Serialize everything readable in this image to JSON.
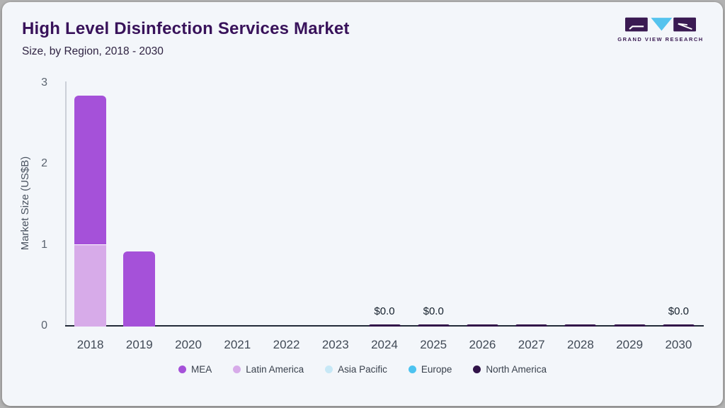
{
  "header": {
    "title": "High Level Disinfection Services Market",
    "subtitle": "Size, by Region, 2018 - 2030"
  },
  "logo": {
    "text": "GRAND VIEW RESEARCH",
    "square_color": "#3a1a52",
    "triangle_color": "#55c3ee"
  },
  "colors": {
    "card_background": "#f3f6fa",
    "title_text": "#38125a",
    "x_axis_line": "#232b39",
    "y_axis_line": "#cbd0d8"
  },
  "chart_data": {
    "type": "bar",
    "stacked": true,
    "title": "High Level Disinfection Services Market",
    "subtitle": "Size, by Region, 2018 - 2030",
    "xlabel": "",
    "ylabel": "Market Size (US$B)",
    "ylim": [
      0,
      3
    ],
    "yticks": [
      0,
      1,
      2,
      3
    ],
    "grid": false,
    "legend_position": "bottom",
    "categories": [
      "2018",
      "2019",
      "2020",
      "2021",
      "2022",
      "2023",
      "2024",
      "2025",
      "2026",
      "2027",
      "2028",
      "2029",
      "2030"
    ],
    "series": [
      {
        "name": "MEA",
        "color": "#a551d9",
        "values": [
          1.84,
          0.93,
          0,
          0,
          0,
          0,
          0,
          0,
          0,
          0,
          0,
          0,
          0
        ]
      },
      {
        "name": "Latin America",
        "color": "#d7abe9",
        "values": [
          1.01,
          0,
          0,
          0,
          0,
          0,
          0,
          0,
          0,
          0,
          0,
          0,
          0
        ]
      },
      {
        "name": "Asia Pacific",
        "color": "#c7e8f6",
        "values": [
          0,
          0,
          0,
          0,
          0,
          0,
          0,
          0,
          0,
          0,
          0,
          0,
          0
        ]
      },
      {
        "name": "Europe",
        "color": "#4cc3f0",
        "values": [
          0,
          0,
          0,
          0,
          0,
          0,
          0,
          0,
          0,
          0,
          0,
          0,
          0
        ]
      },
      {
        "name": "North America",
        "color": "#311349",
        "values": [
          0,
          0,
          0,
          0,
          0,
          0,
          0.03,
          0.03,
          0.03,
          0.03,
          0.03,
          0.03,
          0.03
        ]
      }
    ],
    "stack_order_bottom_to_top": [
      "North America",
      "Europe",
      "Asia Pacific",
      "Latin America",
      "MEA"
    ],
    "bar_labels": [
      {
        "category": "2024",
        "text": "$0.0"
      },
      {
        "category": "2025",
        "text": "$0.0"
      },
      {
        "category": "2030",
        "text": "$0.0"
      }
    ]
  }
}
